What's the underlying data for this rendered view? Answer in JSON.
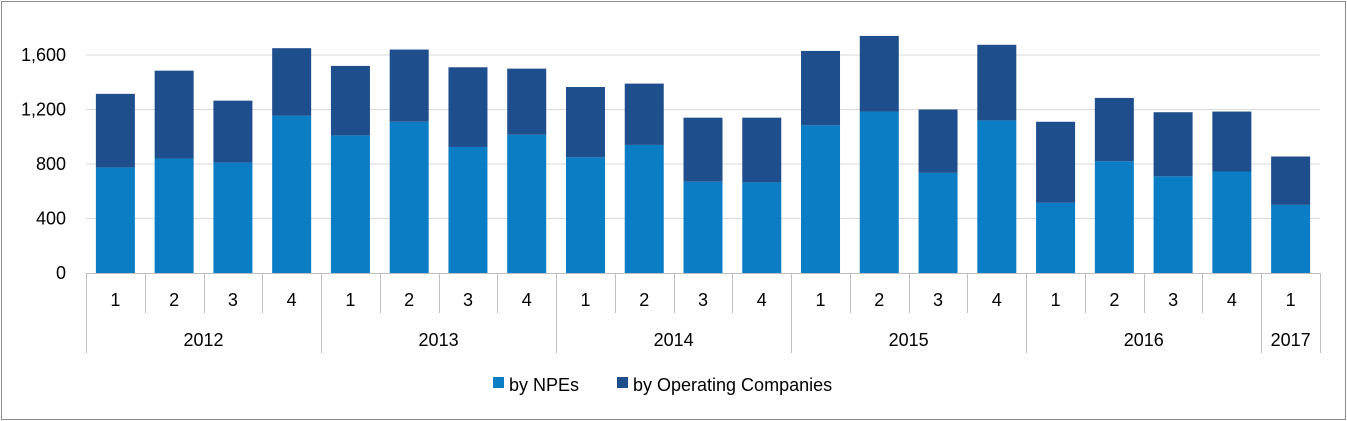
{
  "chart_data": {
    "type": "bar",
    "stacked": true,
    "quarters": [
      "1",
      "2",
      "3",
      "4",
      "1",
      "2",
      "3",
      "4",
      "1",
      "2",
      "3",
      "4",
      "1",
      "2",
      "3",
      "4",
      "1",
      "2",
      "3",
      "4",
      "1"
    ],
    "years": [
      {
        "label": "2012",
        "count": 4
      },
      {
        "label": "2013",
        "count": 4
      },
      {
        "label": "2014",
        "count": 4
      },
      {
        "label": "2015",
        "count": 4
      },
      {
        "label": "2016",
        "count": 4
      },
      {
        "label": "2017",
        "count": 1
      }
    ],
    "series": [
      {
        "name": "by NPEs",
        "color": "#0a7dc4",
        "values": [
          775,
          840,
          810,
          1155,
          1010,
          1110,
          925,
          1015,
          850,
          940,
          670,
          665,
          1085,
          1185,
          735,
          1120,
          515,
          820,
          710,
          745,
          500
        ]
      },
      {
        "name": "by Operating Companies",
        "color": "#1f4e8c",
        "values": [
          540,
          645,
          455,
          495,
          510,
          530,
          585,
          485,
          515,
          450,
          470,
          475,
          545,
          555,
          465,
          555,
          595,
          465,
          470,
          440,
          355
        ]
      }
    ],
    "ylim": [
      0,
      1800
    ],
    "yticks": [
      0,
      400,
      800,
      1200,
      1600
    ],
    "ytick_labels": [
      "0",
      "400",
      "800",
      "1,200",
      "1,600"
    ],
    "grid": true,
    "legend_position": "bottom"
  }
}
